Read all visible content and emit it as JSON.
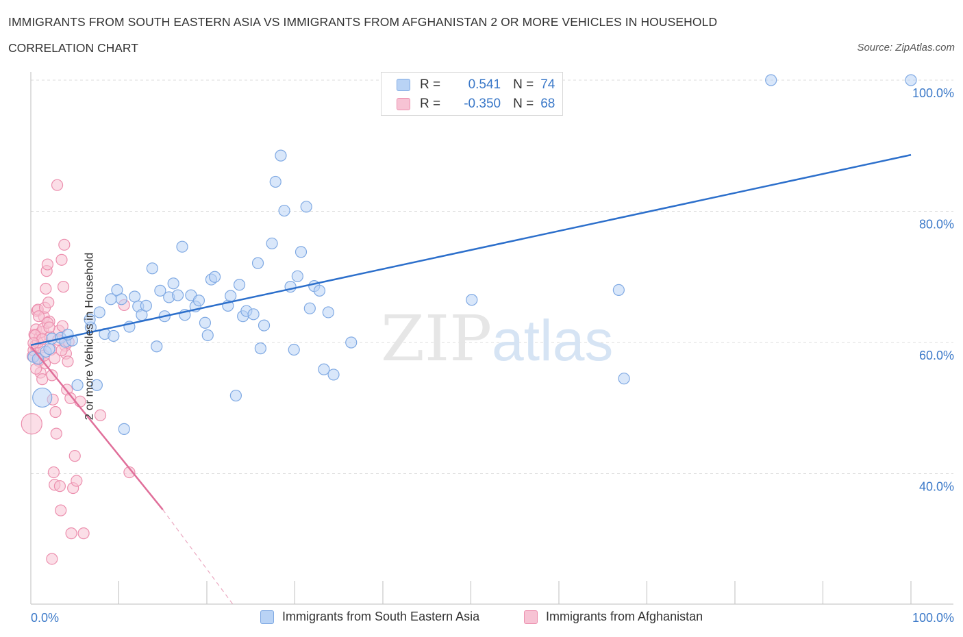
{
  "header": {
    "title": "IMMIGRANTS FROM SOUTH EASTERN ASIA VS IMMIGRANTS FROM AFGHANISTAN 2 OR MORE VEHICLES IN HOUSEHOLD",
    "subtitle": "CORRELATION CHART",
    "source": "Source: ZipAtlas.com"
  },
  "watermark": {
    "zip": "ZIP",
    "atlas": "atlas"
  },
  "legend": {
    "rows": [
      {
        "r_label": "R =",
        "r_value": "0.541",
        "n_label": "N =",
        "n_value": "74"
      },
      {
        "r_label": "R =",
        "r_value": "-0.350",
        "n_label": "N =",
        "n_value": "68"
      }
    ]
  },
  "colors": {
    "blue_fill": "#b9d3f5",
    "blue_stroke": "#7fa9e3",
    "blue_line": "#2c6fcb",
    "pink_fill": "#f7c3d4",
    "pink_stroke": "#ec8fae",
    "pink_line": "#e06f9a",
    "axis_text": "#3a78c8",
    "grid": "#dcdcdc"
  },
  "chart_data": {
    "type": "scatter",
    "title": "IMMIGRANTS FROM SOUTH EASTERN ASIA VS IMMIGRANTS FROM AFGHANISTAN 2 OR MORE VEHICLES IN HOUSEHOLD",
    "subtitle": "CORRELATION CHART",
    "xlabel": "",
    "ylabel": "2 or more Vehicles in Household",
    "xlim": [
      0,
      100
    ],
    "ylim": [
      20,
      100
    ],
    "x_tick_labels": [
      "0.0%",
      "100.0%"
    ],
    "y_ticks": [
      40,
      60,
      80,
      100
    ],
    "y_tick_labels": [
      "40.0%",
      "60.0%",
      "80.0%",
      "100.0%"
    ],
    "grid": true,
    "legend_position": "top-center",
    "series": [
      {
        "name": "Immigrants from South Eastern Asia",
        "color": "#7fa9e3",
        "trend": {
          "x": [
            0,
            100
          ],
          "y": [
            59.6,
            88.6
          ]
        },
        "points": [
          [
            0.3,
            57.8
          ],
          [
            0.8,
            57.5
          ],
          [
            1.3,
            51.6
          ],
          [
            2.4,
            60.6
          ],
          [
            3.4,
            60.7
          ],
          [
            3.9,
            60.1
          ],
          [
            4.7,
            60.3
          ],
          [
            5.3,
            53.5
          ],
          [
            7.5,
            53.5
          ],
          [
            6.8,
            62.3
          ],
          [
            6.7,
            63.5
          ],
          [
            7.8,
            64.6
          ],
          [
            8.4,
            61.3
          ],
          [
            9.1,
            66.6
          ],
          [
            9.4,
            61.0
          ],
          [
            9.8,
            68.0
          ],
          [
            10.3,
            66.6
          ],
          [
            10.6,
            46.8
          ],
          [
            11.2,
            62.4
          ],
          [
            11.8,
            67.0
          ],
          [
            12.2,
            65.5
          ],
          [
            12.6,
            64.2
          ],
          [
            13.1,
            65.6
          ],
          [
            13.8,
            71.3
          ],
          [
            14.3,
            59.4
          ],
          [
            14.7,
            67.9
          ],
          [
            15.2,
            64.0
          ],
          [
            15.7,
            66.9
          ],
          [
            16.2,
            69.0
          ],
          [
            16.7,
            67.2
          ],
          [
            17.2,
            74.6
          ],
          [
            17.5,
            64.2
          ],
          [
            18.2,
            67.2
          ],
          [
            18.7,
            65.5
          ],
          [
            19.1,
            66.4
          ],
          [
            19.8,
            63.0
          ],
          [
            20.1,
            61.1
          ],
          [
            20.5,
            69.6
          ],
          [
            20.9,
            70.0
          ],
          [
            22.4,
            65.6
          ],
          [
            22.7,
            67.1
          ],
          [
            23.3,
            51.9
          ],
          [
            23.7,
            68.8
          ],
          [
            24.1,
            64.0
          ],
          [
            24.5,
            64.8
          ],
          [
            25.3,
            64.3
          ],
          [
            25.8,
            72.1
          ],
          [
            26.1,
            59.1
          ],
          [
            26.5,
            62.6
          ],
          [
            27.4,
            75.1
          ],
          [
            27.8,
            84.5
          ],
          [
            28.4,
            88.5
          ],
          [
            28.8,
            80.1
          ],
          [
            29.5,
            68.5
          ],
          [
            29.9,
            58.9
          ],
          [
            30.3,
            70.1
          ],
          [
            30.7,
            73.8
          ],
          [
            31.3,
            80.7
          ],
          [
            31.7,
            65.2
          ],
          [
            32.2,
            68.6
          ],
          [
            32.8,
            67.9
          ],
          [
            33.3,
            55.9
          ],
          [
            33.8,
            64.6
          ],
          [
            34.4,
            55.1
          ],
          [
            36.4,
            60.0
          ],
          [
            49.8,
            100.0
          ],
          [
            50.1,
            66.5
          ],
          [
            66.8,
            68.0
          ],
          [
            67.4,
            54.5
          ],
          [
            84.1,
            100.0
          ],
          [
            100.0,
            100.0
          ],
          [
            1.7,
            58.6
          ],
          [
            2.1,
            59.0
          ],
          [
            4.2,
            61.2
          ]
        ]
      },
      {
        "name": "Immigrants from Afghanistan",
        "color": "#ec8fae",
        "trend": {
          "x": [
            0,
            15
          ],
          "y": [
            59.4,
            34.5
          ]
        },
        "trend_dashed": {
          "x": [
            15,
            23
          ],
          "y": [
            34.5,
            20.0
          ]
        },
        "points": [
          [
            0.1,
            47.6
          ],
          [
            0.2,
            57.9
          ],
          [
            0.3,
            58.8
          ],
          [
            0.4,
            61.2
          ],
          [
            0.5,
            59.5
          ],
          [
            0.6,
            62.0
          ],
          [
            0.7,
            64.8
          ],
          [
            0.8,
            65.0
          ],
          [
            0.9,
            57.2
          ],
          [
            1.0,
            60.8
          ],
          [
            1.1,
            55.4
          ],
          [
            1.2,
            61.6
          ],
          [
            1.3,
            54.4
          ],
          [
            1.4,
            62.1
          ],
          [
            1.5,
            63.9
          ],
          [
            1.6,
            65.3
          ],
          [
            1.7,
            68.2
          ],
          [
            1.8,
            70.9
          ],
          [
            1.9,
            71.9
          ],
          [
            2.0,
            66.1
          ],
          [
            2.1,
            63.2
          ],
          [
            2.2,
            60.9
          ],
          [
            2.3,
            58.9
          ],
          [
            2.4,
            55.0
          ],
          [
            2.5,
            51.3
          ],
          [
            2.6,
            40.2
          ],
          [
            2.7,
            38.3
          ],
          [
            2.8,
            49.4
          ],
          [
            2.9,
            46.1
          ],
          [
            3.0,
            84.0
          ],
          [
            3.1,
            60.4
          ],
          [
            3.2,
            61.8
          ],
          [
            3.3,
            38.1
          ],
          [
            3.4,
            34.4
          ],
          [
            3.5,
            72.6
          ],
          [
            3.6,
            62.5
          ],
          [
            3.7,
            68.5
          ],
          [
            3.8,
            74.9
          ],
          [
            3.9,
            59.5
          ],
          [
            4.0,
            58.3
          ],
          [
            4.1,
            52.8
          ],
          [
            4.2,
            57.1
          ],
          [
            4.3,
            60.1
          ],
          [
            4.5,
            51.5
          ],
          [
            4.6,
            30.9
          ],
          [
            4.8,
            37.8
          ],
          [
            5.0,
            42.7
          ],
          [
            5.2,
            38.9
          ],
          [
            5.6,
            51.0
          ],
          [
            6.0,
            30.9
          ],
          [
            7.9,
            48.9
          ],
          [
            10.6,
            65.7
          ],
          [
            11.2,
            40.2
          ],
          [
            1.0,
            57.4
          ],
          [
            1.1,
            59.2
          ],
          [
            0.8,
            60.0
          ],
          [
            1.6,
            56.8
          ],
          [
            2.4,
            27.0
          ],
          [
            0.5,
            61.1
          ],
          [
            1.9,
            63.0
          ],
          [
            2.7,
            57.6
          ],
          [
            3.5,
            58.8
          ],
          [
            0.9,
            64.0
          ],
          [
            1.5,
            58.0
          ],
          [
            1.3,
            60.5
          ],
          [
            0.6,
            56.0
          ],
          [
            2.1,
            62.3
          ],
          [
            0.3,
            59.9
          ]
        ]
      }
    ]
  },
  "bottom_legend": {
    "items": [
      {
        "label": "Immigrants from South Eastern Asia"
      },
      {
        "label": "Immigrants from Afghanistan"
      }
    ]
  }
}
